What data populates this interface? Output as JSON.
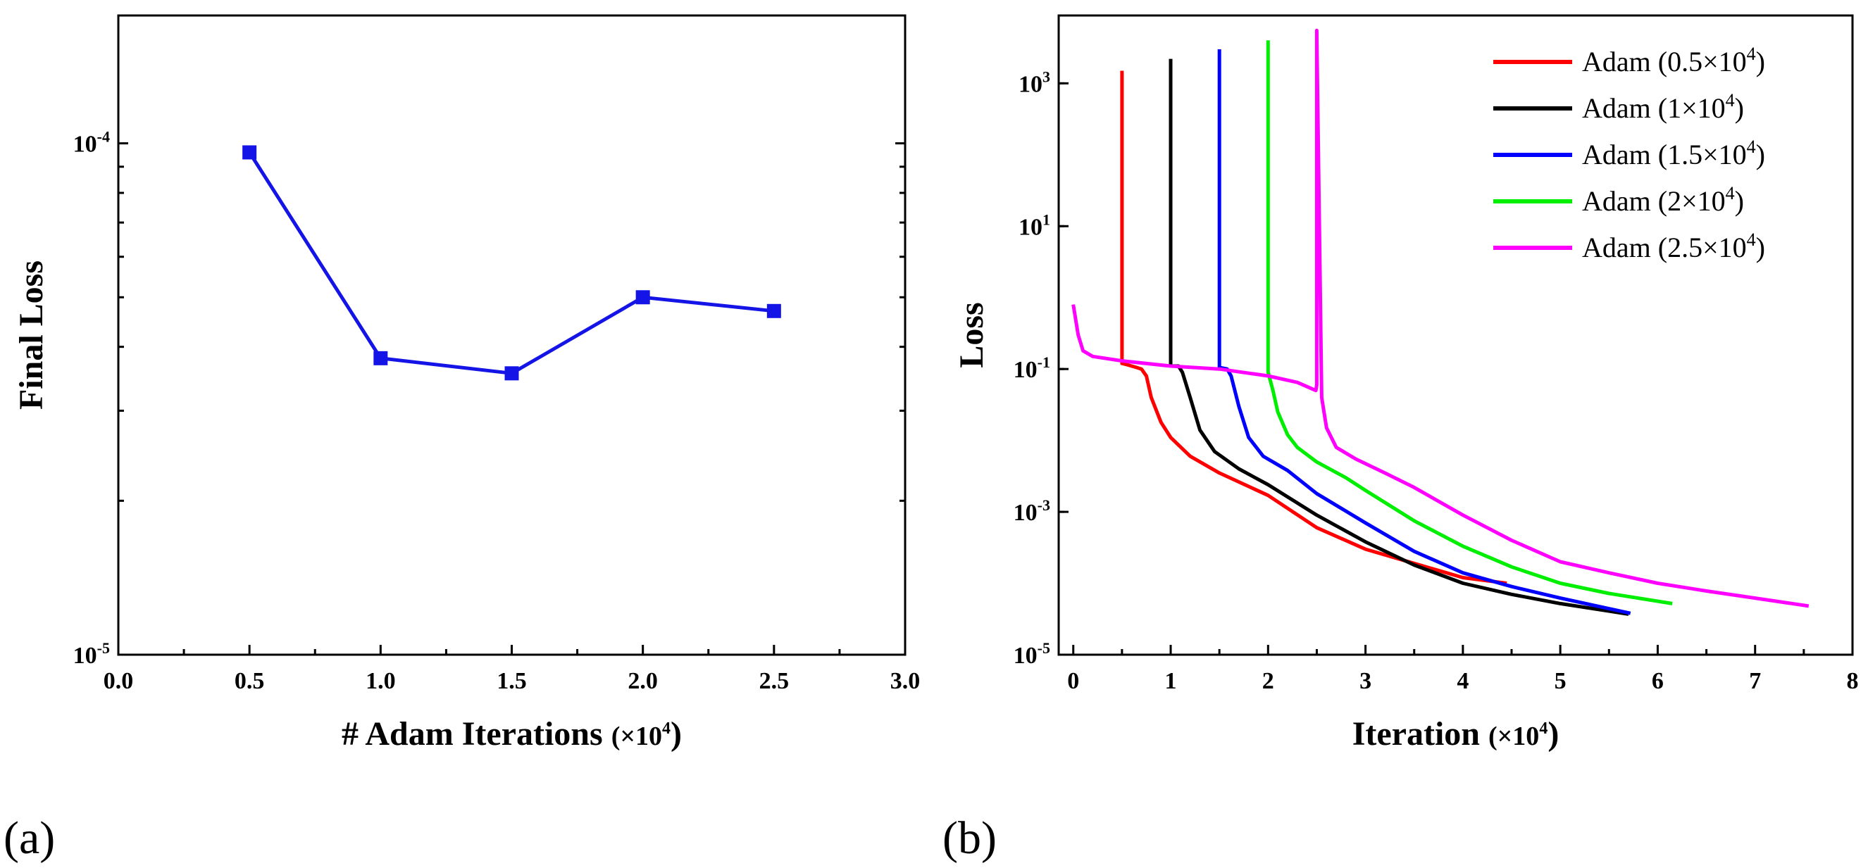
{
  "chart_data": [
    {
      "panel": "(a)",
      "type": "line",
      "xlabel": "# Adam Iterations",
      "xlabel_unit": "(×10",
      "xlabel_exp": "4",
      "xlabel_close": ")",
      "ylabel": "Final Loss",
      "xlim": [
        0.0,
        3.0
      ],
      "ylim_log10": [
        -5,
        -3.75
      ],
      "x_ticks": [
        "0.0",
        "0.5",
        "1.0",
        "1.5",
        "2.0",
        "2.5",
        "3.0"
      ],
      "x_tick_values": [
        0.0,
        0.5,
        1.0,
        1.5,
        2.0,
        2.5,
        3.0
      ],
      "y_ticks": [
        {
          "base": "10",
          "exp": "-5",
          "value": 1e-05
        },
        {
          "base": "10",
          "exp": "-4",
          "value": 0.0001
        }
      ],
      "color": "#1414e6",
      "series": [
        {
          "name": "Final Loss",
          "x": [
            0.5,
            1.0,
            1.5,
            2.0,
            2.5
          ],
          "y": [
            9.6e-05,
            3.8e-05,
            3.55e-05,
            5e-05,
            4.7e-05
          ]
        }
      ]
    },
    {
      "panel": "(b)",
      "type": "line",
      "xlabel": "Iteration",
      "xlabel_unit": "(×10",
      "xlabel_exp": "4",
      "xlabel_close": ")",
      "ylabel": "Loss",
      "xlim": [
        -0.15,
        8.0
      ],
      "ylim_log10": [
        -5,
        3.95
      ],
      "x_ticks": [
        "0",
        "1",
        "2",
        "3",
        "4",
        "5",
        "6",
        "7",
        "8"
      ],
      "x_tick_values": [
        0,
        1,
        2,
        3,
        4,
        5,
        6,
        7,
        8
      ],
      "y_ticks": [
        {
          "base": "10",
          "exp": "-5",
          "value": 1e-05
        },
        {
          "base": "10",
          "exp": "-3",
          "value": 0.001
        },
        {
          "base": "10",
          "exp": "-1",
          "value": 0.1
        },
        {
          "base": "10",
          "exp": "1",
          "value": 10
        },
        {
          "base": "10",
          "exp": "3",
          "value": 1000
        }
      ],
      "legend_position": "top-right",
      "series": [
        {
          "name": "Adam (0.5×10",
          "exp": "4",
          "close": ")",
          "color": "#ff0000",
          "x": [
            0.5,
            0.5,
            0.55,
            0.6,
            0.65,
            0.7,
            0.75,
            0.8,
            0.9,
            1.0,
            1.2,
            1.5,
            2.0,
            2.5,
            3.0,
            3.5,
            4.0,
            4.45
          ],
          "y": [
            1500,
            0.12,
            0.115,
            0.11,
            0.105,
            0.1,
            0.08,
            0.04,
            0.018,
            0.011,
            0.006,
            0.0035,
            0.0017,
            0.0006,
            0.0003,
            0.00019,
            0.00012,
            0.0001
          ]
        },
        {
          "name": "Adam (1×10",
          "exp": "4",
          "close": ")",
          "color": "#000000",
          "x": [
            1.0,
            1.0,
            1.08,
            1.12,
            1.2,
            1.3,
            1.45,
            1.7,
            2.0,
            2.5,
            3.0,
            3.5,
            4.0,
            4.5,
            5.0,
            5.7
          ],
          "y": [
            2200,
            0.11,
            0.11,
            0.09,
            0.04,
            0.014,
            0.007,
            0.004,
            0.0024,
            0.0009,
            0.00038,
            0.00018,
            0.0001,
            7e-05,
            5.2e-05,
            3.7e-05
          ]
        },
        {
          "name": "Adam (1.5×10",
          "exp": "4",
          "close": ")",
          "color": "#0000ff",
          "x": [
            1.5,
            1.5,
            1.58,
            1.62,
            1.7,
            1.8,
            1.95,
            2.2,
            2.5,
            3.0,
            3.5,
            4.0,
            4.5,
            5.0,
            5.72
          ],
          "y": [
            3000,
            0.105,
            0.1,
            0.08,
            0.03,
            0.011,
            0.006,
            0.0038,
            0.0018,
            0.0007,
            0.00028,
            0.00014,
            9e-05,
            6.2e-05,
            3.8e-05
          ]
        },
        {
          "name": "Adam (2×10",
          "exp": "4",
          "close": ")",
          "color": "#00ee00",
          "x": [
            2.0,
            2.0,
            2.05,
            2.1,
            2.2,
            2.3,
            2.5,
            2.8,
            3.0,
            3.5,
            4.0,
            4.5,
            5.0,
            5.5,
            6.15
          ],
          "y": [
            4000,
            0.09,
            0.05,
            0.025,
            0.012,
            0.008,
            0.005,
            0.003,
            0.002,
            0.00075,
            0.00033,
            0.00017,
            0.0001,
            7.2e-05,
            5.2e-05
          ]
        },
        {
          "name": "Adam (2.5×10",
          "exp": "4",
          "close": ")",
          "color": "#ff00ff",
          "x": [
            0.0,
            0.05,
            0.1,
            0.2,
            0.5,
            1.0,
            1.5,
            2.0,
            2.3,
            2.49,
            2.5,
            2.5,
            2.55,
            2.6,
            2.7,
            2.9,
            3.2,
            3.5,
            4.0,
            4.5,
            5.0,
            5.5,
            6.0,
            6.5,
            7.0,
            7.55
          ],
          "y": [
            0.8,
            0.3,
            0.18,
            0.15,
            0.13,
            0.11,
            0.1,
            0.08,
            0.065,
            0.05,
            0.06,
            5500,
            0.04,
            0.015,
            0.008,
            0.0055,
            0.0035,
            0.0022,
            0.0009,
            0.0004,
            0.0002,
            0.00014,
            0.0001,
            7.8e-05,
            6.2e-05,
            4.8e-05
          ]
        }
      ]
    }
  ]
}
